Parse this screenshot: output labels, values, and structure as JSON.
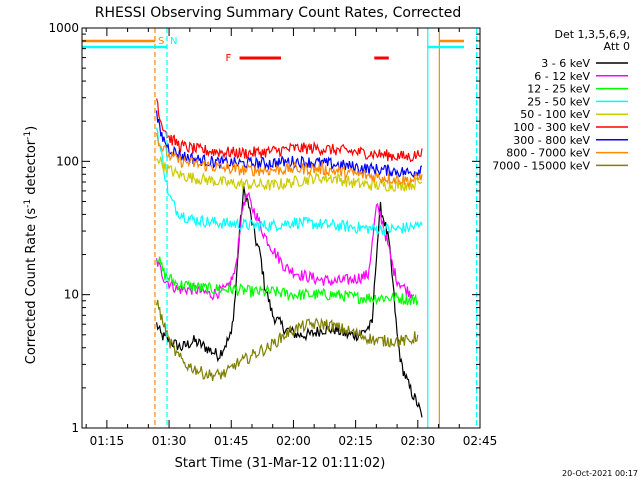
{
  "chart_data": {
    "type": "line",
    "title": "RHESSI Observing Summary Count Rates, Corrected",
    "ylabel_main": "Corrected Count Rate (s",
    "ylabel_sup1": "-1",
    "ylabel_mid": " detector",
    "ylabel_sup2": "-1",
    "ylabel_end": ")",
    "xlabel": "Start Time (31-Mar-12 01:11:02)",
    "footer": "20-Oct-2021 00:17",
    "yscale": "log",
    "ylim": [
      1,
      1000
    ],
    "xlim": [
      9.0,
      105.0
    ],
    "y_ticks": [
      {
        "value": 1,
        "label": "1"
      },
      {
        "value": 10,
        "label": "10"
      },
      {
        "value": 100,
        "label": "100"
      },
      {
        "value": 1000,
        "label": "1000"
      }
    ],
    "x_ticks": [
      {
        "value": 15,
        "label": "01:15"
      },
      {
        "value": 30,
        "label": "01:30"
      },
      {
        "value": 45,
        "label": "01:45"
      },
      {
        "value": 60,
        "label": "02:00"
      },
      {
        "value": 75,
        "label": "02:15"
      },
      {
        "value": 90,
        "label": "02:30"
      },
      {
        "value": 105,
        "label": "02:45"
      }
    ],
    "legend_header": [
      "Det 1,3,5,6,9,",
      "Att 0"
    ],
    "series": [
      {
        "name": "3 - 6 keV",
        "color": "#000000",
        "x": [
          27,
          28,
          30,
          33,
          36,
          39,
          42,
          45,
          46,
          47,
          48,
          49,
          50,
          51,
          52,
          53,
          55,
          58,
          61,
          64,
          67,
          70,
          73,
          76,
          79,
          80,
          81,
          82,
          83,
          84,
          85,
          86,
          88,
          90,
          91
        ],
        "y": [
          6,
          5,
          4.5,
          4,
          4.5,
          4,
          3.5,
          5,
          10,
          30,
          60,
          50,
          35,
          25,
          20,
          12,
          7,
          5.5,
          5,
          5,
          5.5,
          5.5,
          5,
          5,
          6,
          20,
          45,
          35,
          25,
          12,
          5,
          3,
          2,
          1.5,
          1.2
        ]
      },
      {
        "name": "6 - 12 keV",
        "color": "#ff00ff",
        "x": [
          27,
          29,
          32,
          36,
          40,
          44,
          46,
          47,
          48,
          49,
          50,
          51,
          52,
          53,
          55,
          58,
          62,
          66,
          70,
          74,
          78,
          79,
          80,
          81,
          82,
          83,
          84,
          85,
          87,
          89
        ],
        "y": [
          18,
          13,
          11,
          11,
          10,
          11,
          15,
          30,
          50,
          55,
          45,
          40,
          33,
          28,
          22,
          16,
          14,
          13,
          12.5,
          13,
          14,
          24,
          45,
          40,
          30,
          22,
          16,
          13,
          11,
          10
        ]
      },
      {
        "name": "12 - 25 keV",
        "color": "#00ff00",
        "x": [
          27,
          29,
          32,
          36,
          40,
          45,
          50,
          55,
          60,
          65,
          70,
          75,
          80,
          85,
          90
        ],
        "y": [
          20,
          14,
          12,
          11.5,
          11,
          11,
          10.5,
          10.5,
          10,
          10,
          10,
          9.5,
          9.5,
          9.5,
          9
        ]
      },
      {
        "name": "25 - 50 keV",
        "color": "#00ffff",
        "x": [
          27,
          28,
          29,
          30,
          32,
          35,
          40,
          45,
          50,
          55,
          60,
          65,
          70,
          75,
          80,
          85,
          88,
          91
        ],
        "y": [
          180,
          120,
          80,
          55,
          42,
          37,
          35,
          34,
          33,
          33,
          35,
          34,
          33,
          32,
          31,
          31,
          32,
          33
        ]
      },
      {
        "name": "50 - 100 keV",
        "color": "#cccc00",
        "x": [
          27,
          29,
          32,
          36,
          40,
          45,
          50,
          55,
          60,
          65,
          70,
          75,
          80,
          85,
          88,
          91
        ],
        "y": [
          110,
          90,
          80,
          75,
          72,
          68,
          67,
          66,
          70,
          75,
          75,
          68,
          66,
          66,
          67,
          70
        ]
      },
      {
        "name": "100 - 300 keV",
        "color": "#ff0000",
        "x": [
          27,
          28,
          30,
          33,
          37,
          42,
          48,
          54,
          60,
          66,
          72,
          78,
          84,
          88,
          90,
          91
        ],
        "y": [
          300,
          200,
          150,
          130,
          122,
          118,
          115,
          118,
          125,
          125,
          120,
          115,
          110,
          108,
          112,
          125
        ]
      },
      {
        "name": "300 - 800 keV",
        "color": "#0000ff",
        "x": [
          27,
          28,
          30,
          33,
          37,
          42,
          48,
          54,
          60,
          66,
          72,
          78,
          84,
          88,
          90,
          91
        ],
        "y": [
          220,
          160,
          125,
          110,
          103,
          98,
          96,
          97,
          100,
          98,
          93,
          88,
          85,
          82,
          85,
          92
        ]
      },
      {
        "name": "800 - 7000 keV",
        "color": "#ff8800",
        "x": [
          27,
          28,
          30,
          33,
          37,
          42,
          48,
          54,
          60,
          66,
          72,
          78,
          84,
          88,
          90,
          91
        ],
        "y": [
          160,
          130,
          110,
          100,
          95,
          90,
          86,
          86,
          88,
          88,
          83,
          78,
          74,
          72,
          74,
          80
        ]
      },
      {
        "name": "7000 - 15000 keV",
        "color": "#808000",
        "x": [
          27,
          28,
          30,
          32,
          34,
          36,
          38,
          40,
          42,
          44,
          46,
          48,
          50,
          52,
          54,
          56,
          58,
          60,
          64,
          68,
          72,
          76,
          80,
          84,
          88,
          90
        ],
        "y": [
          9,
          7,
          4.5,
          3.5,
          3,
          2.8,
          2.6,
          2.5,
          2.5,
          2.6,
          3,
          3.2,
          3.5,
          3.8,
          4,
          4.5,
          5,
          5.5,
          6,
          6,
          5.5,
          5,
          4.5,
          4.5,
          4.5,
          5
        ]
      }
    ],
    "markers": [
      {
        "label": "S",
        "x": 26.6,
        "color": "#ff8800",
        "dashed": true
      },
      {
        "label": "N",
        "x": 29.5,
        "color": "#00ffff",
        "dashed": true
      },
      {
        "label": "",
        "x": 92.4,
        "color": "#00ffff",
        "dashed": false
      },
      {
        "label": "",
        "x": 95.2,
        "color": "#ff8800",
        "dashed": false
      },
      {
        "label": "",
        "x": 104.2,
        "color": "#00ffff",
        "dashed": true
      }
    ],
    "flare_label": "F",
    "flare_intervals": [
      [
        47.0,
        57.0
      ],
      [
        79.5,
        83.0
      ]
    ]
  }
}
